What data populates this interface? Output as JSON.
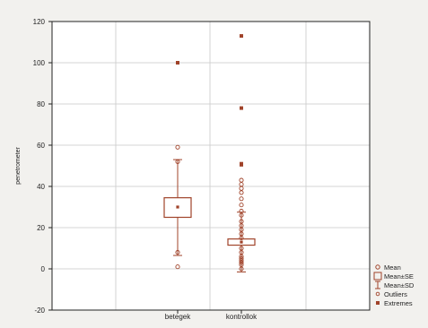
{
  "chart_data": {
    "type": "box",
    "ylabel": "penetrometer",
    "categories": [
      "betegek",
      "kontrollok"
    ],
    "ylim": [
      -20,
      120
    ],
    "yticks": [
      -20,
      0,
      20,
      40,
      60,
      80,
      100,
      120
    ],
    "grid": true,
    "legend_position": "bottom-right",
    "legend": [
      "Mean",
      "Mean±SE",
      "Mean±SD",
      "Outliers",
      "Extremes"
    ],
    "colors": {
      "series": "#a0432a",
      "axis": "#222222",
      "grid": "#c8c8c8",
      "plot_bg": "#ffffff",
      "page_bg": "#f2f1ee"
    },
    "series": [
      {
        "category": "betegek",
        "mean": 30,
        "se_low": 25,
        "se_high": 34.5,
        "sd_low": 6.5,
        "sd_high": 53,
        "outliers": [
          1,
          8,
          52,
          59
        ],
        "extremes": [
          100
        ]
      },
      {
        "category": "kontrollok",
        "mean": 13,
        "se_low": 11.5,
        "se_high": 14.5,
        "sd_low": -1.5,
        "sd_high": 27.5,
        "outliers": [
          0,
          2,
          3,
          4,
          5,
          6,
          8,
          10,
          15,
          17,
          19,
          21,
          23,
          26,
          28,
          31,
          34,
          37,
          39,
          41,
          43
        ],
        "extremes": [
          50.5,
          51,
          78,
          113
        ]
      }
    ]
  }
}
